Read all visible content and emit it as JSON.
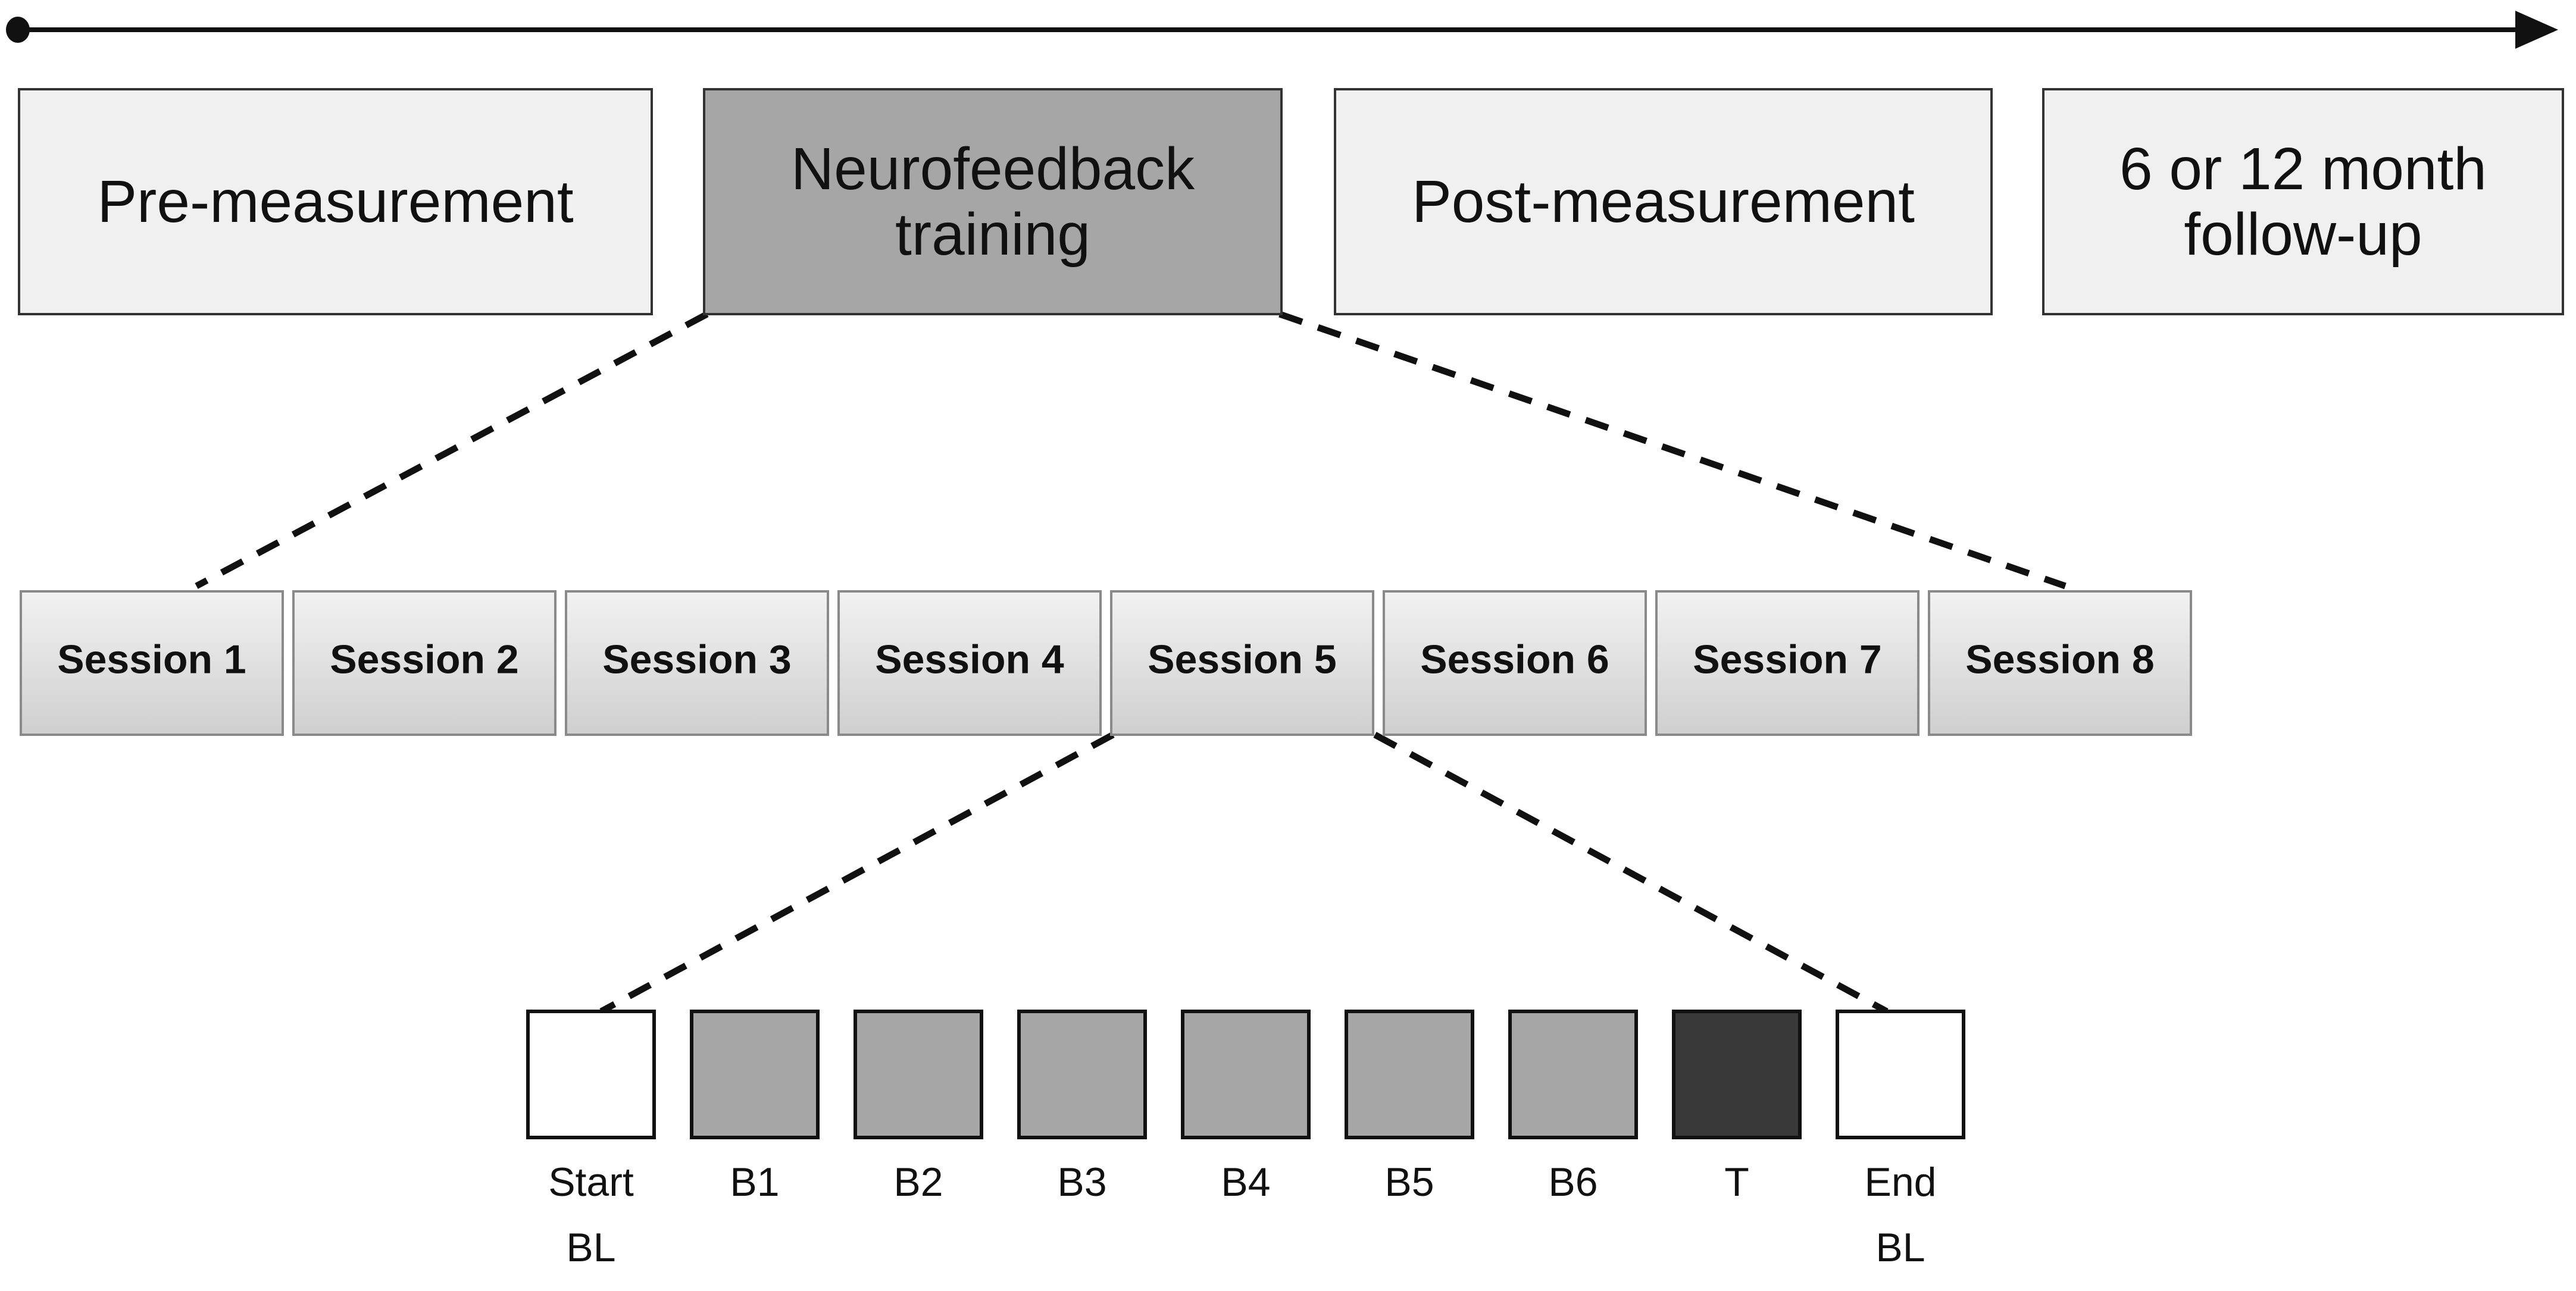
{
  "phases": [
    {
      "lines": [
        "Pre-measurement"
      ],
      "fill": "#f0f0f0"
    },
    {
      "lines": [
        "Neurofeedback",
        "training"
      ],
      "fill": "#a6a6a6"
    },
    {
      "lines": [
        "Post-measurement"
      ],
      "fill": "#f0f0f0"
    },
    {
      "lines": [
        "6 or 12 month",
        "follow-up"
      ],
      "fill": "#f0f0f0"
    }
  ],
  "sessions": [
    "Session 1",
    "Session 2",
    "Session 3",
    "Session 4",
    "Session 5",
    "Session 6",
    "Session 7",
    "Session 8"
  ],
  "blocks": [
    {
      "lines": [
        "Start",
        "BL"
      ],
      "fill": "#ffffff"
    },
    {
      "lines": [
        "B1"
      ],
      "fill": "#a6a6a6"
    },
    {
      "lines": [
        "B2"
      ],
      "fill": "#a6a6a6"
    },
    {
      "lines": [
        "B3"
      ],
      "fill": "#a6a6a6"
    },
    {
      "lines": [
        "B4"
      ],
      "fill": "#a6a6a6"
    },
    {
      "lines": [
        "B5"
      ],
      "fill": "#a6a6a6"
    },
    {
      "lines": [
        "B6"
      ],
      "fill": "#a6a6a6"
    },
    {
      "lines": [
        "T"
      ],
      "fill": "#3a3939"
    },
    {
      "lines": [
        "End",
        "BL"
      ],
      "fill": "#ffffff"
    }
  ],
  "colors": {
    "outline": "#333333",
    "session_gradient_top": "#f2f2f2",
    "session_gradient_bottom": "#cfcfcf"
  }
}
